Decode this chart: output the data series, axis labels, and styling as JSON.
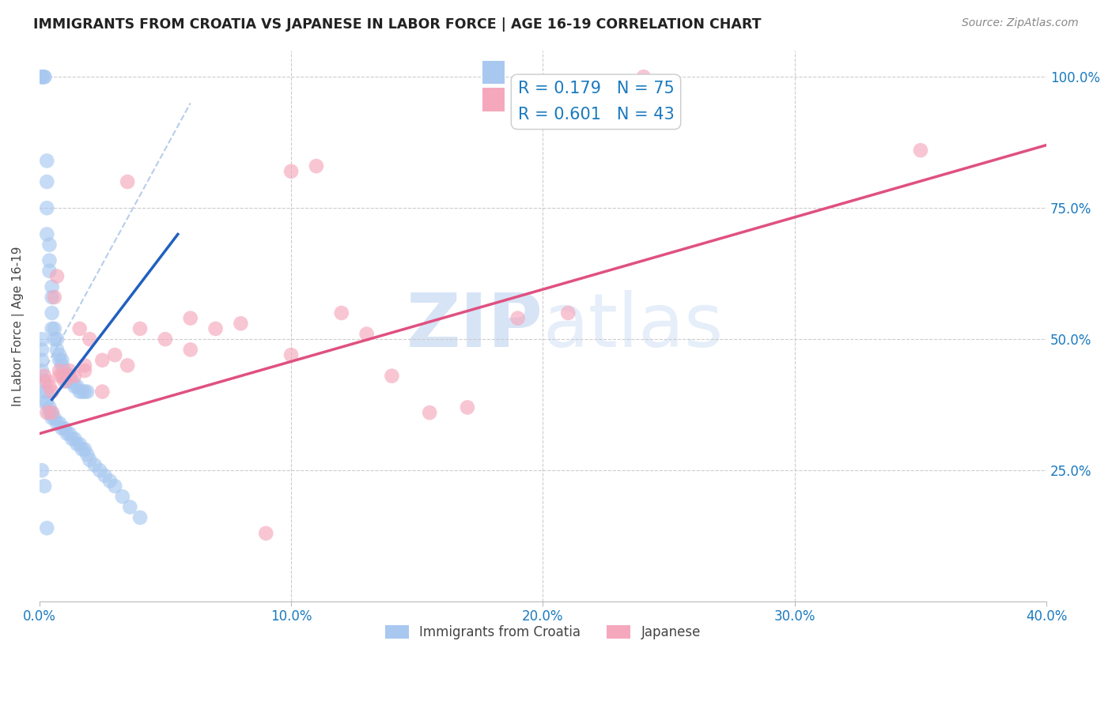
{
  "title": "IMMIGRANTS FROM CROATIA VS JAPANESE IN LABOR FORCE | AGE 16-19 CORRELATION CHART",
  "source": "Source: ZipAtlas.com",
  "ylabel": "In Labor Force | Age 16-19",
  "xlim": [
    0.0,
    0.4
  ],
  "ylim": [
    0.0,
    1.05
  ],
  "xtick_labels": [
    "0.0%",
    "10.0%",
    "20.0%",
    "30.0%",
    "40.0%"
  ],
  "xtick_values": [
    0.0,
    0.1,
    0.2,
    0.3,
    0.4
  ],
  "ytick_labels": [
    "25.0%",
    "50.0%",
    "75.0%",
    "100.0%"
  ],
  "ytick_values": [
    0.25,
    0.5,
    0.75,
    1.0
  ],
  "croatia_R": 0.179,
  "croatia_N": 75,
  "japanese_R": 0.601,
  "japanese_N": 43,
  "croatia_color": "#a8c8f0",
  "japanese_color": "#f5a8bc",
  "croatia_line_color": "#2060c0",
  "japanese_line_color": "#e05080",
  "dashed_line_color": "#b0c8e8",
  "watermark_color": "#d0e0f5",
  "legend_color": "#1a7abf",
  "croatia_x": [
    0.001,
    0.001,
    0.001,
    0.002,
    0.002,
    0.003,
    0.003,
    0.003,
    0.003,
    0.004,
    0.004,
    0.004,
    0.005,
    0.005,
    0.005,
    0.005,
    0.006,
    0.006,
    0.007,
    0.007,
    0.008,
    0.008,
    0.009,
    0.009,
    0.01,
    0.01,
    0.011,
    0.011,
    0.012,
    0.013,
    0.014,
    0.015,
    0.016,
    0.017,
    0.018,
    0.019,
    0.001,
    0.001,
    0.001,
    0.001,
    0.002,
    0.002,
    0.002,
    0.003,
    0.003,
    0.004,
    0.004,
    0.005,
    0.005,
    0.006,
    0.007,
    0.008,
    0.009,
    0.01,
    0.011,
    0.012,
    0.013,
    0.014,
    0.015,
    0.016,
    0.017,
    0.018,
    0.019,
    0.02,
    0.022,
    0.024,
    0.026,
    0.028,
    0.03,
    0.033,
    0.036,
    0.04,
    0.001,
    0.002,
    0.003
  ],
  "croatia_y": [
    1.0,
    1.0,
    1.0,
    1.0,
    1.0,
    0.84,
    0.8,
    0.75,
    0.7,
    0.68,
    0.65,
    0.63,
    0.6,
    0.58,
    0.55,
    0.52,
    0.52,
    0.5,
    0.5,
    0.48,
    0.47,
    0.46,
    0.46,
    0.45,
    0.44,
    0.43,
    0.43,
    0.42,
    0.42,
    0.42,
    0.41,
    0.41,
    0.4,
    0.4,
    0.4,
    0.4,
    0.5,
    0.48,
    0.46,
    0.44,
    0.42,
    0.4,
    0.38,
    0.4,
    0.38,
    0.37,
    0.36,
    0.36,
    0.35,
    0.35,
    0.34,
    0.34,
    0.33,
    0.33,
    0.32,
    0.32,
    0.31,
    0.31,
    0.3,
    0.3,
    0.29,
    0.29,
    0.28,
    0.27,
    0.26,
    0.25,
    0.24,
    0.23,
    0.22,
    0.2,
    0.18,
    0.16,
    0.25,
    0.22,
    0.14
  ],
  "japanese_x": [
    0.002,
    0.003,
    0.004,
    0.005,
    0.006,
    0.007,
    0.008,
    0.009,
    0.01,
    0.012,
    0.014,
    0.016,
    0.018,
    0.02,
    0.025,
    0.03,
    0.035,
    0.04,
    0.05,
    0.06,
    0.07,
    0.08,
    0.09,
    0.1,
    0.11,
    0.12,
    0.13,
    0.14,
    0.155,
    0.17,
    0.19,
    0.21,
    0.24,
    0.003,
    0.005,
    0.008,
    0.012,
    0.018,
    0.025,
    0.035,
    0.06,
    0.1,
    0.35
  ],
  "japanese_y": [
    0.43,
    0.42,
    0.41,
    0.4,
    0.58,
    0.62,
    0.44,
    0.43,
    0.42,
    0.44,
    0.43,
    0.52,
    0.45,
    0.5,
    0.46,
    0.47,
    0.45,
    0.52,
    0.5,
    0.54,
    0.52,
    0.53,
    0.13,
    0.82,
    0.83,
    0.55,
    0.51,
    0.43,
    0.36,
    0.37,
    0.54,
    0.55,
    1.0,
    0.36,
    0.36,
    0.43,
    0.43,
    0.44,
    0.4,
    0.8,
    0.48,
    0.47,
    0.86
  ],
  "croatia_line_x": [
    0.005,
    0.055
  ],
  "croatia_line_y": [
    0.385,
    0.7
  ],
  "japanese_line_x": [
    0.0,
    0.4
  ],
  "japanese_line_y": [
    0.32,
    0.87
  ]
}
